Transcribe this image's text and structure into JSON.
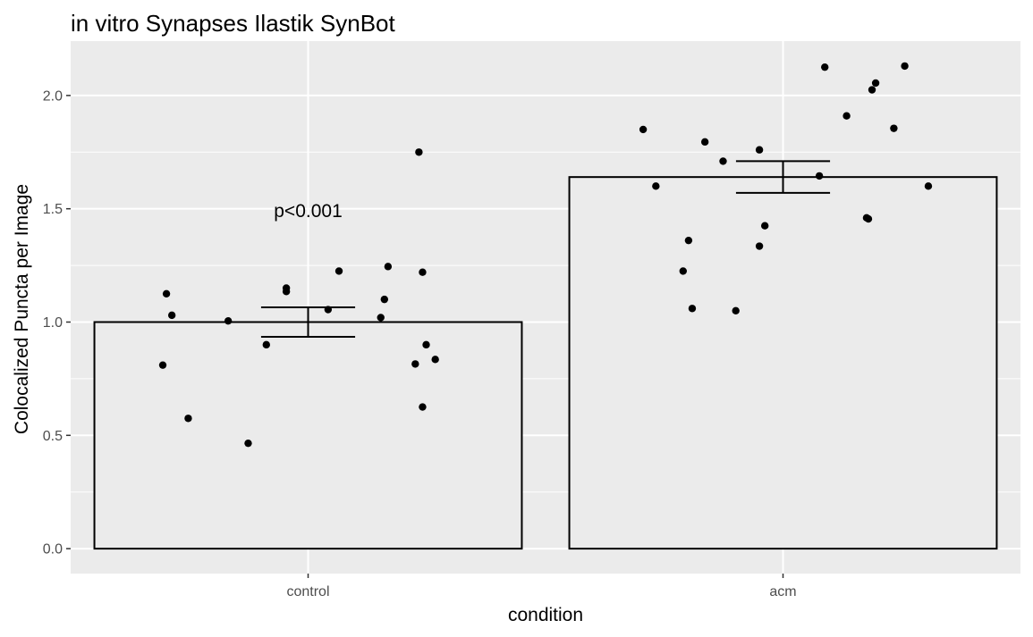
{
  "chart_data": {
    "type": "bar",
    "title": "in vitro Synapses Ilastik SynBot",
    "xlabel": "condition",
    "ylabel": "Colocalized Puncta per Image",
    "categories": [
      "control",
      "acm"
    ],
    "values": [
      1.0,
      1.64
    ],
    "error_bars": [
      {
        "lower": 0.935,
        "upper": 1.065
      },
      {
        "lower": 1.57,
        "upper": 1.71
      }
    ],
    "points": [
      {
        "category": "control",
        "values": [
          1.125,
          1.03,
          0.81,
          0.575,
          1.005,
          0.465,
          0.9,
          1.15,
          1.135,
          1.225,
          1.055,
          1.02,
          1.1,
          1.245,
          1.75,
          1.22,
          0.815,
          0.9,
          0.625,
          0.835
        ]
      },
      {
        "category": "acm",
        "values": [
          1.85,
          1.6,
          1.36,
          1.225,
          1.06,
          1.795,
          1.71,
          1.05,
          1.76,
          1.335,
          1.425,
          1.645,
          2.125,
          1.91,
          1.46,
          1.455,
          2.025,
          2.055,
          1.855,
          2.13,
          1.6
        ]
      }
    ],
    "annotations": [
      {
        "text": "p<0.001",
        "category": "control",
        "y": 1.49
      }
    ],
    "yticks": [
      0.0,
      0.5,
      1.0,
      1.5,
      2.0
    ],
    "ytick_labels": [
      "0.0",
      "0.5",
      "1.0",
      "1.5",
      "2.0"
    ],
    "ylim": [
      -0.11,
      2.24
    ],
    "grid": true,
    "colors": {
      "panel": "#ebebeb",
      "grid": "#ffffff",
      "bar_fill": "#ebebeb",
      "bar_outline": "#000000",
      "point": "#000000"
    }
  }
}
